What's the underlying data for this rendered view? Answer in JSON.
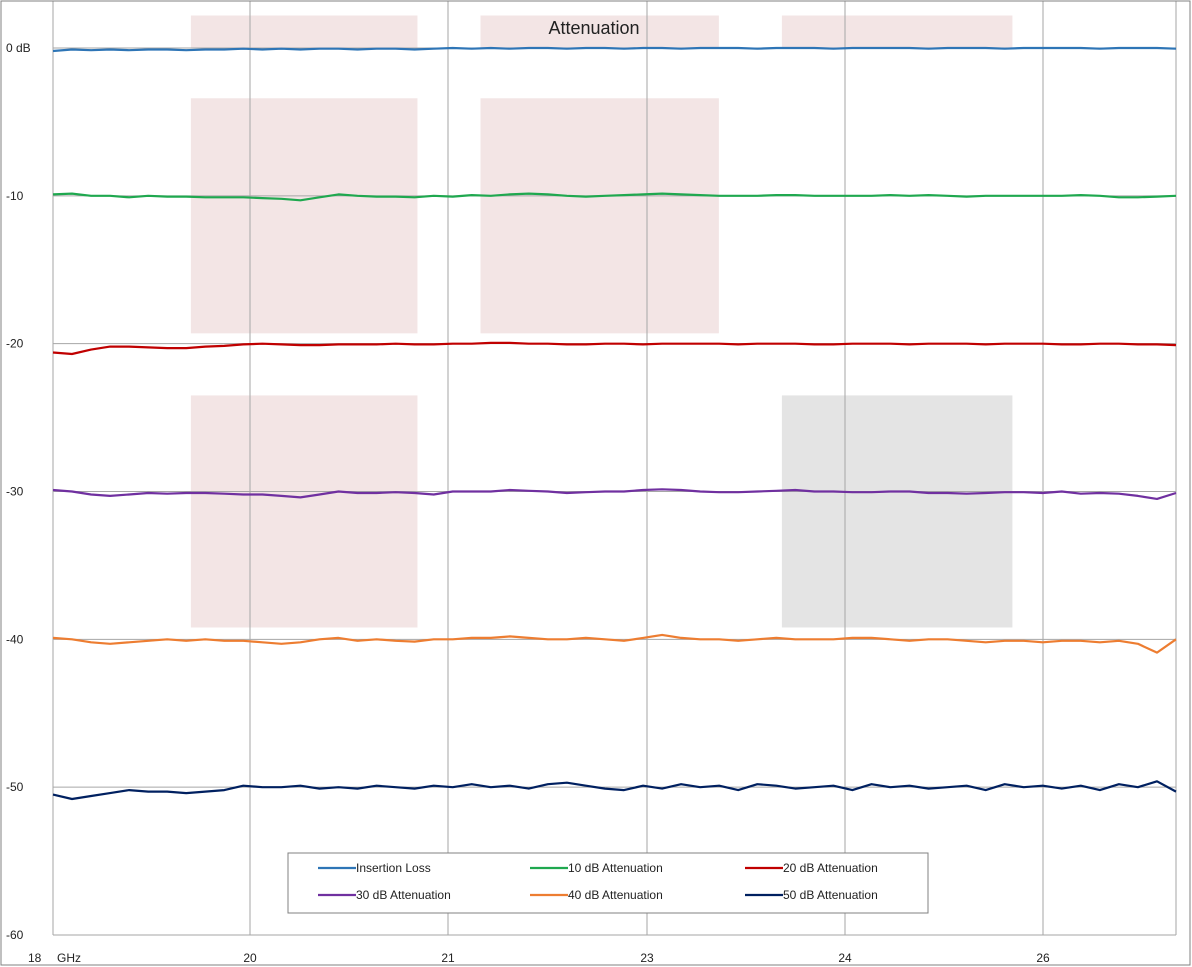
{
  "chart_data": {
    "type": "line",
    "title": "Attenuation",
    "xlabel": "",
    "ylabel": "",
    "ylim": [
      -60,
      0
    ],
    "y_ticks": [
      {
        "value": 0,
        "label": "0 dB"
      },
      {
        "value": -10,
        "label": "-10"
      },
      {
        "value": -20,
        "label": "-20"
      },
      {
        "value": -30,
        "label": "-30"
      },
      {
        "value": -40,
        "label": "-40"
      },
      {
        "value": -50,
        "label": "-50"
      },
      {
        "value": -60,
        "label": "-60"
      }
    ],
    "x_ticks": [
      "18",
      "20",
      "21",
      "23",
      "24",
      "26"
    ],
    "x_first_tick_unit": "GHz",
    "x_points": 60,
    "grid": true,
    "legend_position": "bottom-center",
    "shaded_regions": [
      {
        "x_from": 0.7,
        "x_to": 1.85,
        "y_from": 0,
        "y_to": 2.2,
        "color": "#f3e5e5"
      },
      {
        "x_from": 2.17,
        "x_to": 3.38,
        "y_from": 0,
        "y_to": 2.2,
        "color": "#f3e5e5"
      },
      {
        "x_from": 3.7,
        "x_to": 4.87,
        "y_from": 0,
        "y_to": 2.2,
        "color": "#f3e5e5"
      },
      {
        "x_from": 0.7,
        "x_to": 1.85,
        "y_from": -3.4,
        "y_to": -19.3,
        "color": "#f3e5e5"
      },
      {
        "x_from": 2.17,
        "x_to": 3.38,
        "y_from": -3.4,
        "y_to": -19.3,
        "color": "#f3e5e5"
      },
      {
        "x_from": 0.7,
        "x_to": 1.85,
        "y_from": -23.5,
        "y_to": -39.2,
        "color": "#f3e5e5"
      },
      {
        "x_from": 3.7,
        "x_to": 4.87,
        "y_from": -23.5,
        "y_to": -39.2,
        "color": "#e4e4e4"
      }
    ],
    "series": [
      {
        "name": "Insertion Loss",
        "color": "#2e75b6",
        "values": [
          -0.2,
          -0.1,
          -0.15,
          -0.1,
          -0.15,
          -0.1,
          -0.1,
          -0.15,
          -0.1,
          -0.1,
          -0.05,
          -0.1,
          -0.05,
          -0.1,
          -0.05,
          -0.05,
          -0.1,
          -0.05,
          -0.05,
          -0.1,
          -0.05,
          0,
          -0.05,
          0,
          -0.05,
          0,
          0,
          -0.05,
          0,
          0,
          -0.05,
          0,
          0,
          -0.05,
          0,
          0,
          0,
          -0.05,
          0,
          0,
          0,
          -0.05,
          0,
          0,
          0,
          0,
          -0.05,
          0,
          0,
          0,
          -0.05,
          0,
          0,
          0,
          0,
          -0.05,
          0,
          0,
          0,
          -0.05
        ]
      },
      {
        "name": "10 dB Attenuation",
        "color": "#1fa84f",
        "values": [
          -9.9,
          -9.85,
          -10,
          -10,
          -10.1,
          -10,
          -10.05,
          -10.05,
          -10.1,
          -10.1,
          -10.1,
          -10.15,
          -10.2,
          -10.3,
          -10.1,
          -9.9,
          -10,
          -10.05,
          -10.05,
          -10.1,
          -10,
          -10.05,
          -9.95,
          -10,
          -9.9,
          -9.85,
          -9.9,
          -10,
          -10.05,
          -10,
          -9.95,
          -9.9,
          -9.85,
          -9.9,
          -9.95,
          -10,
          -10,
          -10,
          -9.95,
          -9.95,
          -10,
          -10,
          -10,
          -10,
          -9.95,
          -10,
          -9.95,
          -10,
          -10.05,
          -10,
          -10,
          -10,
          -10,
          -10,
          -9.95,
          -10,
          -10.1,
          -10.1,
          -10.05,
          -10
        ]
      },
      {
        "name": "20 dB Attenuation",
        "color": "#c00000",
        "values": [
          -20.6,
          -20.7,
          -20.4,
          -20.2,
          -20.2,
          -20.25,
          -20.3,
          -20.3,
          -20.2,
          -20.15,
          -20.05,
          -20,
          -20.05,
          -20.1,
          -20.1,
          -20.05,
          -20.05,
          -20.05,
          -20,
          -20.05,
          -20.05,
          -20,
          -20,
          -19.95,
          -19.95,
          -20,
          -20,
          -20.05,
          -20.05,
          -20,
          -20,
          -20.05,
          -20,
          -20,
          -20,
          -20,
          -20.05,
          -20,
          -20,
          -20,
          -20.05,
          -20.05,
          -20,
          -20,
          -20,
          -20.05,
          -20,
          -20,
          -20,
          -20.05,
          -20,
          -20,
          -20,
          -20.05,
          -20.05,
          -20,
          -20,
          -20.05,
          -20.05,
          -20.1
        ]
      },
      {
        "name": "30 dB Attenuation",
        "color": "#7030a0",
        "values": [
          -29.9,
          -30.0,
          -30.2,
          -30.3,
          -30.2,
          -30.1,
          -30.15,
          -30.1,
          -30.1,
          -30.15,
          -30.2,
          -30.2,
          -30.3,
          -30.4,
          -30.2,
          -30.0,
          -30.1,
          -30.1,
          -30.05,
          -30.1,
          -30.2,
          -30.0,
          -30.0,
          -30.0,
          -29.9,
          -29.95,
          -30.0,
          -30.1,
          -30.05,
          -30.0,
          -30.0,
          -29.9,
          -29.85,
          -29.9,
          -30.0,
          -30.05,
          -30.05,
          -30.0,
          -29.95,
          -29.9,
          -30.0,
          -30.0,
          -30.05,
          -30.05,
          -30.0,
          -30.0,
          -30.1,
          -30.1,
          -30.15,
          -30.1,
          -30.05,
          -30.05,
          -30.1,
          -30.0,
          -30.15,
          -30.1,
          -30.15,
          -30.3,
          -30.5,
          -30.1
        ]
      },
      {
        "name": "40 dB Attenuation",
        "color": "#ed7d31",
        "values": [
          -39.9,
          -40.0,
          -40.2,
          -40.3,
          -40.2,
          -40.1,
          -40.0,
          -40.1,
          -40.0,
          -40.1,
          -40.1,
          -40.2,
          -40.3,
          -40.2,
          -40.0,
          -39.9,
          -40.1,
          -40.0,
          -40.1,
          -40.15,
          -40.0,
          -40.0,
          -39.9,
          -39.9,
          -39.8,
          -39.9,
          -40.0,
          -40.0,
          -39.9,
          -40.0,
          -40.1,
          -39.9,
          -39.7,
          -39.9,
          -40.0,
          -40.0,
          -40.1,
          -40.0,
          -39.9,
          -40.0,
          -40.0,
          -40.0,
          -39.9,
          -39.9,
          -40.0,
          -40.1,
          -40.0,
          -40.0,
          -40.1,
          -40.2,
          -40.1,
          -40.1,
          -40.2,
          -40.1,
          -40.1,
          -40.2,
          -40.1,
          -40.3,
          -40.9,
          -40.0
        ]
      },
      {
        "name": "50 dB Attenuation",
        "color": "#002060",
        "values": [
          -50.5,
          -50.8,
          -50.6,
          -50.4,
          -50.2,
          -50.3,
          -50.3,
          -50.4,
          -50.3,
          -50.2,
          -49.9,
          -50.0,
          -50.0,
          -49.9,
          -50.1,
          -50.0,
          -50.1,
          -49.9,
          -50.0,
          -50.1,
          -49.9,
          -50.0,
          -49.8,
          -50.0,
          -49.9,
          -50.1,
          -49.8,
          -49.7,
          -49.9,
          -50.1,
          -50.2,
          -49.9,
          -50.1,
          -49.8,
          -50.0,
          -49.9,
          -50.2,
          -49.8,
          -49.9,
          -50.1,
          -50.0,
          -49.9,
          -50.2,
          -49.8,
          -50.0,
          -49.9,
          -50.1,
          -50.0,
          -49.9,
          -50.2,
          -49.8,
          -50.0,
          -49.9,
          -50.1,
          -49.9,
          -50.2,
          -49.8,
          -50.0,
          -49.6,
          -50.3
        ]
      }
    ]
  }
}
